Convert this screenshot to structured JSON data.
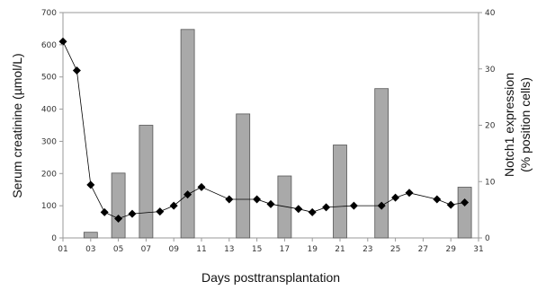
{
  "chart_data": {
    "type": "bar+line",
    "xlabel": "Days posttransplantation",
    "ylabel_left": "Serum creatinine (µmol/L)",
    "ylabel_right_line1": "Notch1 expression",
    "ylabel_right_line2": "(% position cells)",
    "x_ticks": [
      "01",
      "03",
      "05",
      "07",
      "09",
      "11",
      "13",
      "15",
      "17",
      "19",
      "21",
      "23",
      "25",
      "27",
      "29",
      "31"
    ],
    "left_ticks": [
      "0",
      "100",
      "200",
      "300",
      "400",
      "500",
      "600",
      "700"
    ],
    "right_ticks": [
      "0",
      "10",
      "20",
      "30",
      "40"
    ],
    "ylim_left": [
      0,
      700
    ],
    "ylim_right": [
      0,
      40
    ],
    "xlim": [
      1,
      31
    ],
    "grid": false,
    "bars": {
      "name": "Notch1 expression (% position cells)",
      "axis": "right",
      "color": "#a9a9a9",
      "x": [
        3,
        5,
        7,
        10,
        14,
        17,
        21,
        24,
        30
      ],
      "values": [
        1,
        11.5,
        20,
        37,
        22,
        11,
        16.5,
        26.5,
        9
      ]
    },
    "line": {
      "name": "Serum creatinine (µmol/L)",
      "axis": "left",
      "color": "#000000",
      "x": [
        1,
        2,
        3,
        4,
        5,
        6,
        8,
        9,
        10,
        11,
        13,
        15,
        16,
        18,
        19,
        20,
        22,
        24,
        25,
        26,
        28,
        29,
        30
      ],
      "values": [
        610,
        520,
        165,
        80,
        60,
        75,
        82,
        100,
        135,
        158,
        120,
        120,
        105,
        90,
        80,
        95,
        100,
        100,
        125,
        140,
        120,
        103,
        110
      ]
    }
  }
}
